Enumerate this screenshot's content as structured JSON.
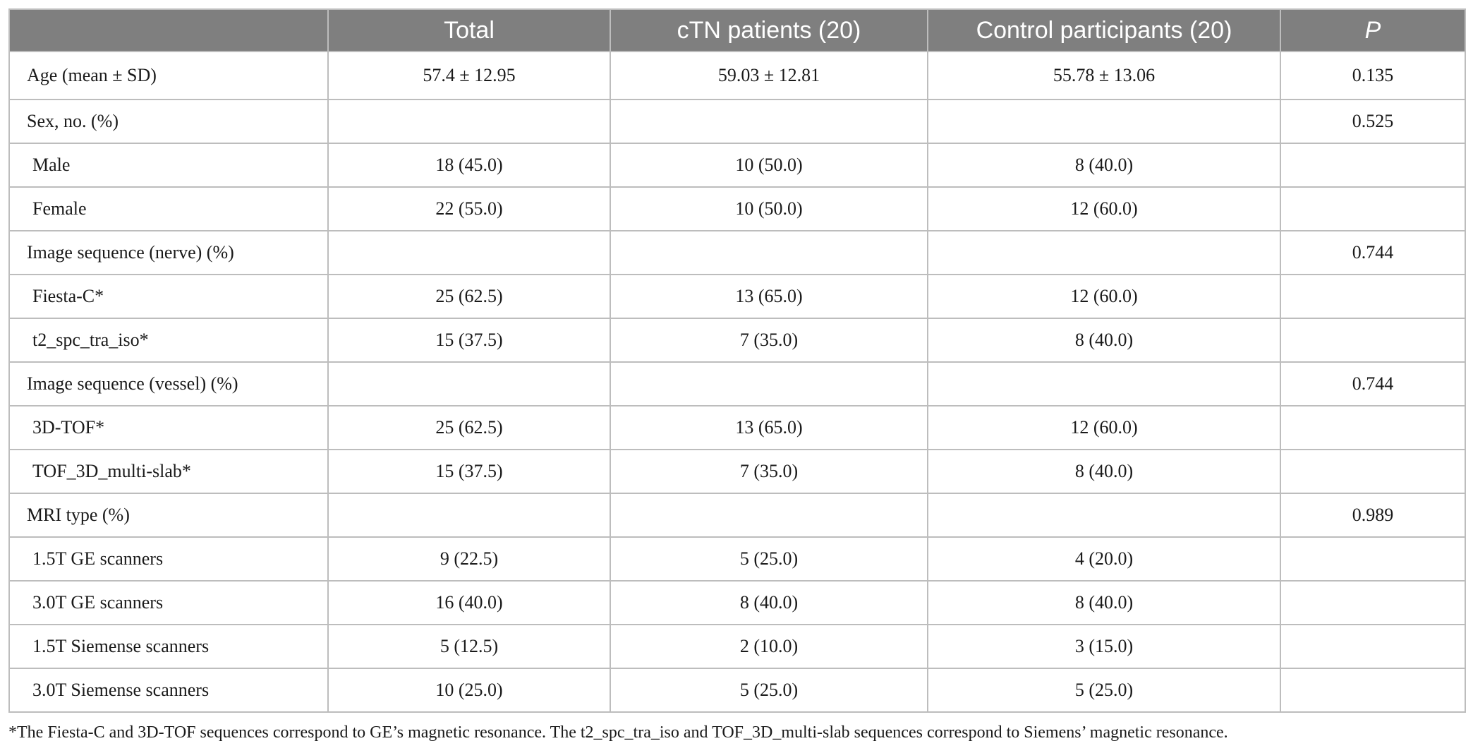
{
  "table": {
    "headers": [
      "",
      "Total",
      "cTN patients (20)",
      "Control participants (20)",
      "P"
    ],
    "rows": [
      {
        "label": "Age (mean ± SD)",
        "total": "57.4 ± 12.95",
        "ctn": "59.03 ± 12.81",
        "control": "55.78 ± 13.06",
        "p": "0.135",
        "indent": false
      },
      {
        "label": "Sex, no. (%)",
        "total": "",
        "ctn": "",
        "control": "",
        "p": "0.525",
        "indent": false
      },
      {
        "label": "Male",
        "total": "18 (45.0)",
        "ctn": "10 (50.0)",
        "control": "8 (40.0)",
        "p": "",
        "indent": true
      },
      {
        "label": "Female",
        "total": "22 (55.0)",
        "ctn": "10 (50.0)",
        "control": "12 (60.0)",
        "p": "",
        "indent": true
      },
      {
        "label": "Image sequence (nerve) (%)",
        "total": "",
        "ctn": "",
        "control": "",
        "p": "0.744",
        "indent": false
      },
      {
        "label": "Fiesta-C*",
        "total": "25 (62.5)",
        "ctn": "13 (65.0)",
        "control": "12 (60.0)",
        "p": "",
        "indent": true
      },
      {
        "label": "t2_spc_tra_iso*",
        "total": "15 (37.5)",
        "ctn": "7 (35.0)",
        "control": "8 (40.0)",
        "p": "",
        "indent": true
      },
      {
        "label": "Image sequence (vessel) (%)",
        "total": "",
        "ctn": "",
        "control": "",
        "p": "0.744",
        "indent": false
      },
      {
        "label": "3D-TOF*",
        "total": "25 (62.5)",
        "ctn": "13 (65.0)",
        "control": "12 (60.0)",
        "p": "",
        "indent": true
      },
      {
        "label": "TOF_3D_multi-slab*",
        "total": "15 (37.5)",
        "ctn": "7 (35.0)",
        "control": "8 (40.0)",
        "p": "",
        "indent": true
      },
      {
        "label": "MRI type (%)",
        "total": "",
        "ctn": "",
        "control": "",
        "p": "0.989",
        "indent": false
      },
      {
        "label": "1.5T GE scanners",
        "total": "9 (22.5)",
        "ctn": "5 (25.0)",
        "control": "4 (20.0)",
        "p": "",
        "indent": true
      },
      {
        "label": "3.0T GE scanners",
        "total": "16 (40.0)",
        "ctn": "8 (40.0)",
        "control": "8 (40.0)",
        "p": "",
        "indent": true
      },
      {
        "label": "1.5T Siemense scanners",
        "total": "5 (12.5)",
        "ctn": "2 (10.0)",
        "control": "3 (15.0)",
        "p": "",
        "indent": true
      },
      {
        "label": "3.0T Siemense scanners",
        "total": "10 (25.0)",
        "ctn": "5 (25.0)",
        "control": "5 (25.0)",
        "p": "",
        "indent": true
      }
    ]
  },
  "footnote": "*The Fiesta-C and 3D-TOF sequences correspond to GE’s magnetic resonance. The t2_spc_tra_iso and TOF_3D_multi-slab sequences correspond to Siemens’ magnetic resonance.",
  "colors": {
    "header_bg": "#7f7f7f",
    "header_text": "#ffffff",
    "border": "#bdbdbd",
    "body_text": "#1a1a1a"
  }
}
